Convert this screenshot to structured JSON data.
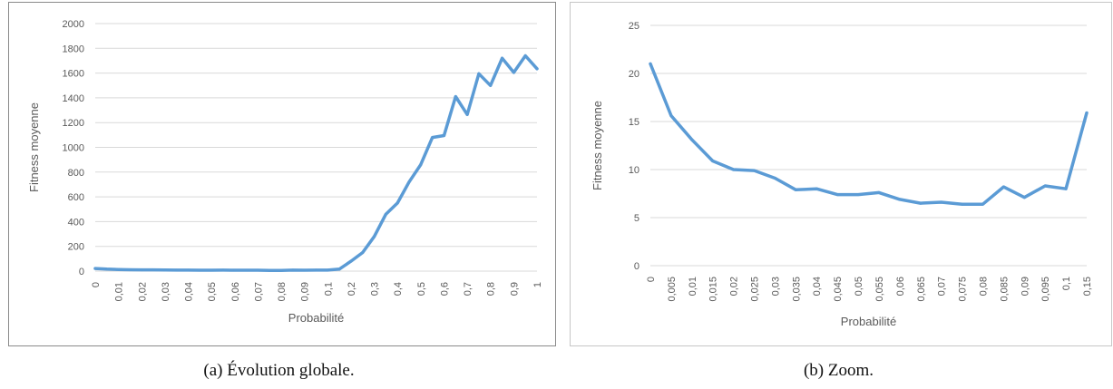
{
  "captions": {
    "a": "(a) Évolution globale.",
    "b": "(b) Zoom."
  },
  "colors": {
    "line": "#5b9bd5",
    "grid": "#d9d9d9",
    "text": "#595959"
  },
  "chart_data": [
    {
      "type": "line",
      "xlabel": "Probabilité",
      "ylabel": "Fitness moyenne",
      "ylim": [
        0,
        2000
      ],
      "yticks": [
        "0",
        "200",
        "400",
        "600",
        "800",
        "1000",
        "1200",
        "1400",
        "1600",
        "1800",
        "2000"
      ],
      "categories": [
        "0",
        "0,01",
        "0,02",
        "0,03",
        "0,04",
        "0,05",
        "0,06",
        "0,07",
        "0,08",
        "0,09",
        "0,1",
        "0,2",
        "0,3",
        "0,4",
        "0,5",
        "0,6",
        "0,7",
        "0,8",
        "0,9",
        "1"
      ],
      "x": [
        0,
        0.005,
        0.01,
        0.015,
        0.02,
        0.025,
        0.03,
        0.035,
        0.04,
        0.045,
        0.05,
        0.055,
        0.06,
        0.065,
        0.07,
        0.075,
        0.08,
        0.085,
        0.09,
        0.095,
        0.1,
        0.15,
        0.2,
        0.25,
        0.3,
        0.35,
        0.4,
        0.45,
        0.5,
        0.55,
        0.6,
        0.65,
        0.7,
        0.75,
        0.8,
        0.85,
        0.9,
        0.95,
        1
      ],
      "values": [
        21,
        16,
        13,
        11,
        10,
        10,
        9,
        8,
        8,
        7,
        7,
        8,
        7,
        7,
        7,
        6,
        6,
        8,
        7,
        8,
        8,
        16,
        80,
        150,
        280,
        460,
        550,
        720,
        860,
        1080,
        1095,
        1410,
        1265,
        1595,
        1500,
        1720,
        1605,
        1740,
        1635
      ],
      "grid": true
    },
    {
      "type": "line",
      "xlabel": "Probabilité",
      "ylabel": "Fitness moyenne",
      "ylim": [
        0,
        25
      ],
      "yticks": [
        "0",
        "5",
        "10",
        "15",
        "20",
        "25"
      ],
      "categories": [
        "0",
        "0,005",
        "0,01",
        "0,015",
        "0,02",
        "0,025",
        "0,03",
        "0,035",
        "0,04",
        "0,045",
        "0,05",
        "0,055",
        "0,06",
        "0,065",
        "0,07",
        "0,075",
        "0,08",
        "0,085",
        "0,09",
        "0,095",
        "0,1",
        "0,15"
      ],
      "values": [
        21.0,
        15.6,
        13.1,
        10.9,
        10.0,
        9.9,
        9.1,
        7.9,
        8.0,
        7.4,
        7.4,
        7.6,
        6.9,
        6.5,
        6.6,
        6.4,
        6.4,
        8.2,
        7.1,
        8.3,
        8.0,
        15.9
      ],
      "grid": true
    }
  ]
}
